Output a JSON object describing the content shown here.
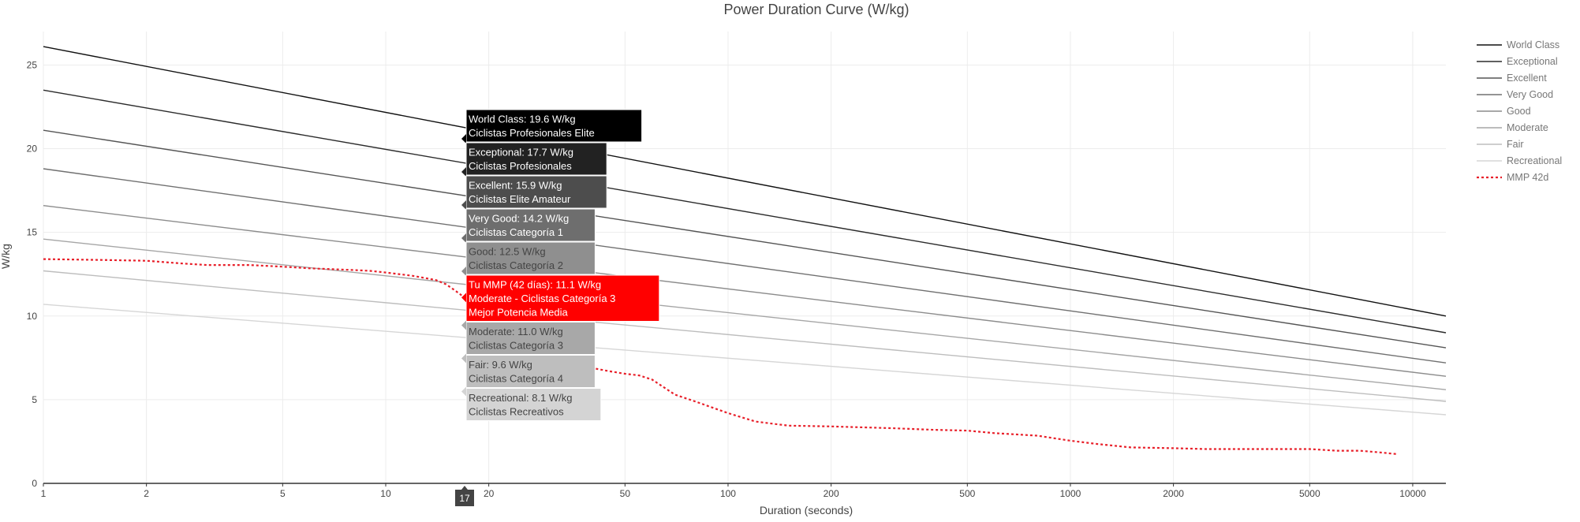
{
  "chart_data": {
    "type": "line",
    "title": "Power Duration Curve (W/kg)",
    "xlabel": "Duration (seconds)",
    "ylabel": "W/kg",
    "x_scale": "log",
    "xlim": [
      1,
      12500
    ],
    "ylim": [
      0,
      27
    ],
    "grid": true,
    "legend_position": "top-right",
    "x_ticks": [
      1,
      2,
      5,
      10,
      20,
      50,
      100,
      200,
      500,
      1000,
      2000,
      5000,
      10000
    ],
    "x_tick_labels": [
      "1",
      "2",
      "5",
      "10",
      "20",
      "50",
      "100",
      "200",
      "500",
      "1000",
      "2000",
      "5000",
      "10000"
    ],
    "y_ticks": [
      0,
      5,
      10,
      15,
      20,
      25
    ],
    "y_tick_labels": [
      "0",
      "5",
      "10",
      "15",
      "20",
      "25"
    ],
    "series": [
      {
        "name": "World Class",
        "color": "#111111",
        "dash": "solid",
        "x": [
          1,
          12500
        ],
        "y": [
          26.1,
          10.0
        ]
      },
      {
        "name": "Exceptional",
        "color": "#2b2b2b",
        "dash": "solid",
        "x": [
          1,
          12500
        ],
        "y": [
          23.5,
          9.0
        ]
      },
      {
        "name": "Excellent",
        "color": "#555555",
        "dash": "solid",
        "x": [
          1,
          12500
        ],
        "y": [
          21.1,
          8.1
        ]
      },
      {
        "name": "Very Good",
        "color": "#707070",
        "dash": "solid",
        "x": [
          1,
          12500
        ],
        "y": [
          18.8,
          7.2
        ]
      },
      {
        "name": "Good",
        "color": "#8c8c8c",
        "dash": "solid",
        "x": [
          1,
          12500
        ],
        "y": [
          16.6,
          6.4
        ]
      },
      {
        "name": "Moderate",
        "color": "#a6a6a6",
        "dash": "solid",
        "x": [
          1,
          12500
        ],
        "y": [
          14.6,
          5.6
        ]
      },
      {
        "name": "Fair",
        "color": "#bdbdbd",
        "dash": "solid",
        "x": [
          1,
          12500
        ],
        "y": [
          12.7,
          4.9
        ]
      },
      {
        "name": "Recreational",
        "color": "#d6d6d6",
        "dash": "solid",
        "x": [
          1,
          12500
        ],
        "y": [
          10.7,
          4.1
        ]
      },
      {
        "name": "MMP 42d",
        "color": "#e8202a",
        "dash": "dot",
        "x": [
          1,
          1.5,
          2,
          2.5,
          3,
          4,
          5,
          6,
          7,
          8,
          9,
          10,
          12,
          14,
          15,
          16,
          17,
          18,
          20,
          25,
          30,
          35,
          38,
          40,
          45,
          50,
          55,
          60,
          70,
          80,
          100,
          120,
          150,
          200,
          300,
          400,
          500,
          600,
          800,
          1000,
          1200,
          1500,
          2000,
          2500,
          3000,
          4000,
          5000,
          6000,
          7000,
          8000,
          9000
        ],
        "y": [
          13.4,
          13.35,
          13.3,
          13.15,
          13.05,
          13.05,
          12.95,
          12.85,
          12.8,
          12.75,
          12.7,
          12.6,
          12.4,
          12.15,
          11.9,
          11.5,
          11.1,
          10.5,
          9.4,
          8.0,
          7.4,
          7.2,
          7.1,
          6.9,
          6.7,
          6.55,
          6.45,
          6.2,
          5.3,
          4.9,
          4.2,
          3.7,
          3.45,
          3.4,
          3.3,
          3.2,
          3.15,
          3.0,
          2.85,
          2.55,
          2.35,
          2.15,
          2.1,
          2.05,
          2.05,
          2.05,
          2.05,
          1.95,
          1.95,
          1.85,
          1.75
        ]
      }
    ],
    "hover": {
      "x": 17,
      "x_label": "17",
      "boxes": [
        {
          "lines": [
            "World Class: 19.6 W/kg",
            "Ciclistas Profesionales Elite"
          ],
          "bg": "#000000",
          "fg": "#ffffff",
          "y": 19.6
        },
        {
          "lines": [
            "Exceptional: 17.7 W/kg",
            "Ciclistas Profesionales"
          ],
          "bg": "#222222",
          "fg": "#ffffff",
          "y": 17.7
        },
        {
          "lines": [
            "Excellent: 15.9 W/kg",
            "Ciclistas Elite Amateur"
          ],
          "bg": "#4d4d4d",
          "fg": "#ffffff",
          "y": 15.9
        },
        {
          "lines": [
            "Very Good: 14.2 W/kg",
            "Ciclistas Categoría 1"
          ],
          "bg": "#6e6e6e",
          "fg": "#ffffff",
          "y": 14.2
        },
        {
          "lines": [
            "Good: 12.5 W/kg",
            "Ciclistas Categoría 2"
          ],
          "bg": "#8f8f8f",
          "fg": "#444444",
          "y": 12.5
        },
        {
          "lines": [
            "Tu MMP (42 días): 11.1 W/kg",
            "Moderate - Ciclistas Categoría 3",
            "Mejor Potencia Media"
          ],
          "bg": "#ff0000",
          "fg": "#ffffff",
          "y": 11.1
        },
        {
          "lines": [
            "Moderate: 11.0 W/kg",
            "Ciclistas Categoría 3"
          ],
          "bg": "#a8a8a8",
          "fg": "#444444",
          "y": 11.0
        },
        {
          "lines": [
            "Fair: 9.6 W/kg",
            "Ciclistas Categoría 4"
          ],
          "bg": "#bebebe",
          "fg": "#444444",
          "y": 9.6
        },
        {
          "lines": [
            "Recreational: 8.1 W/kg",
            "Ciclistas Recreativos"
          ],
          "bg": "#d4d4d4",
          "fg": "#444444",
          "y": 8.1
        }
      ]
    }
  }
}
